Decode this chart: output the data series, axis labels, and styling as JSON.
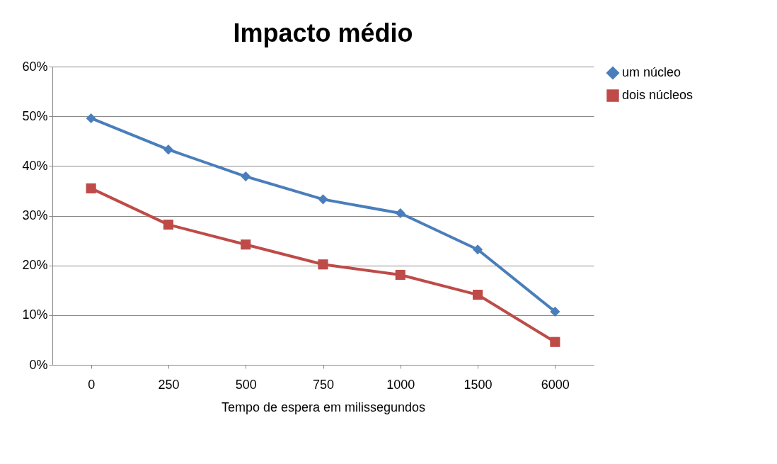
{
  "chart_data": {
    "type": "line",
    "title": "Impacto médio",
    "xlabel": "Tempo de espera em milissegundos",
    "categories": [
      "0",
      "250",
      "500",
      "750",
      "1000",
      "1500",
      "6000"
    ],
    "ylim": [
      0,
      60
    ],
    "yticks": [
      {
        "value": 0,
        "label": "0%"
      },
      {
        "value": 10,
        "label": "10%"
      },
      {
        "value": 20,
        "label": "20%"
      },
      {
        "value": 30,
        "label": "30%"
      },
      {
        "value": 40,
        "label": "40%"
      },
      {
        "value": 50,
        "label": "50%"
      },
      {
        "value": 60,
        "label": "60%"
      }
    ],
    "grid": "y",
    "legend": "right",
    "line_style": "solid",
    "series": [
      {
        "name": "um núcleo",
        "color": "#4a7ebb",
        "marker": "diamond",
        "values": [
          49.6,
          43.3,
          37.9,
          33.3,
          30.5,
          23.2,
          10.7
        ]
      },
      {
        "name": "dois núcleos",
        "color": "#be4b48",
        "marker": "square",
        "values": [
          35.5,
          28.2,
          24.2,
          20.2,
          18.1,
          14.1,
          4.6
        ]
      }
    ]
  }
}
